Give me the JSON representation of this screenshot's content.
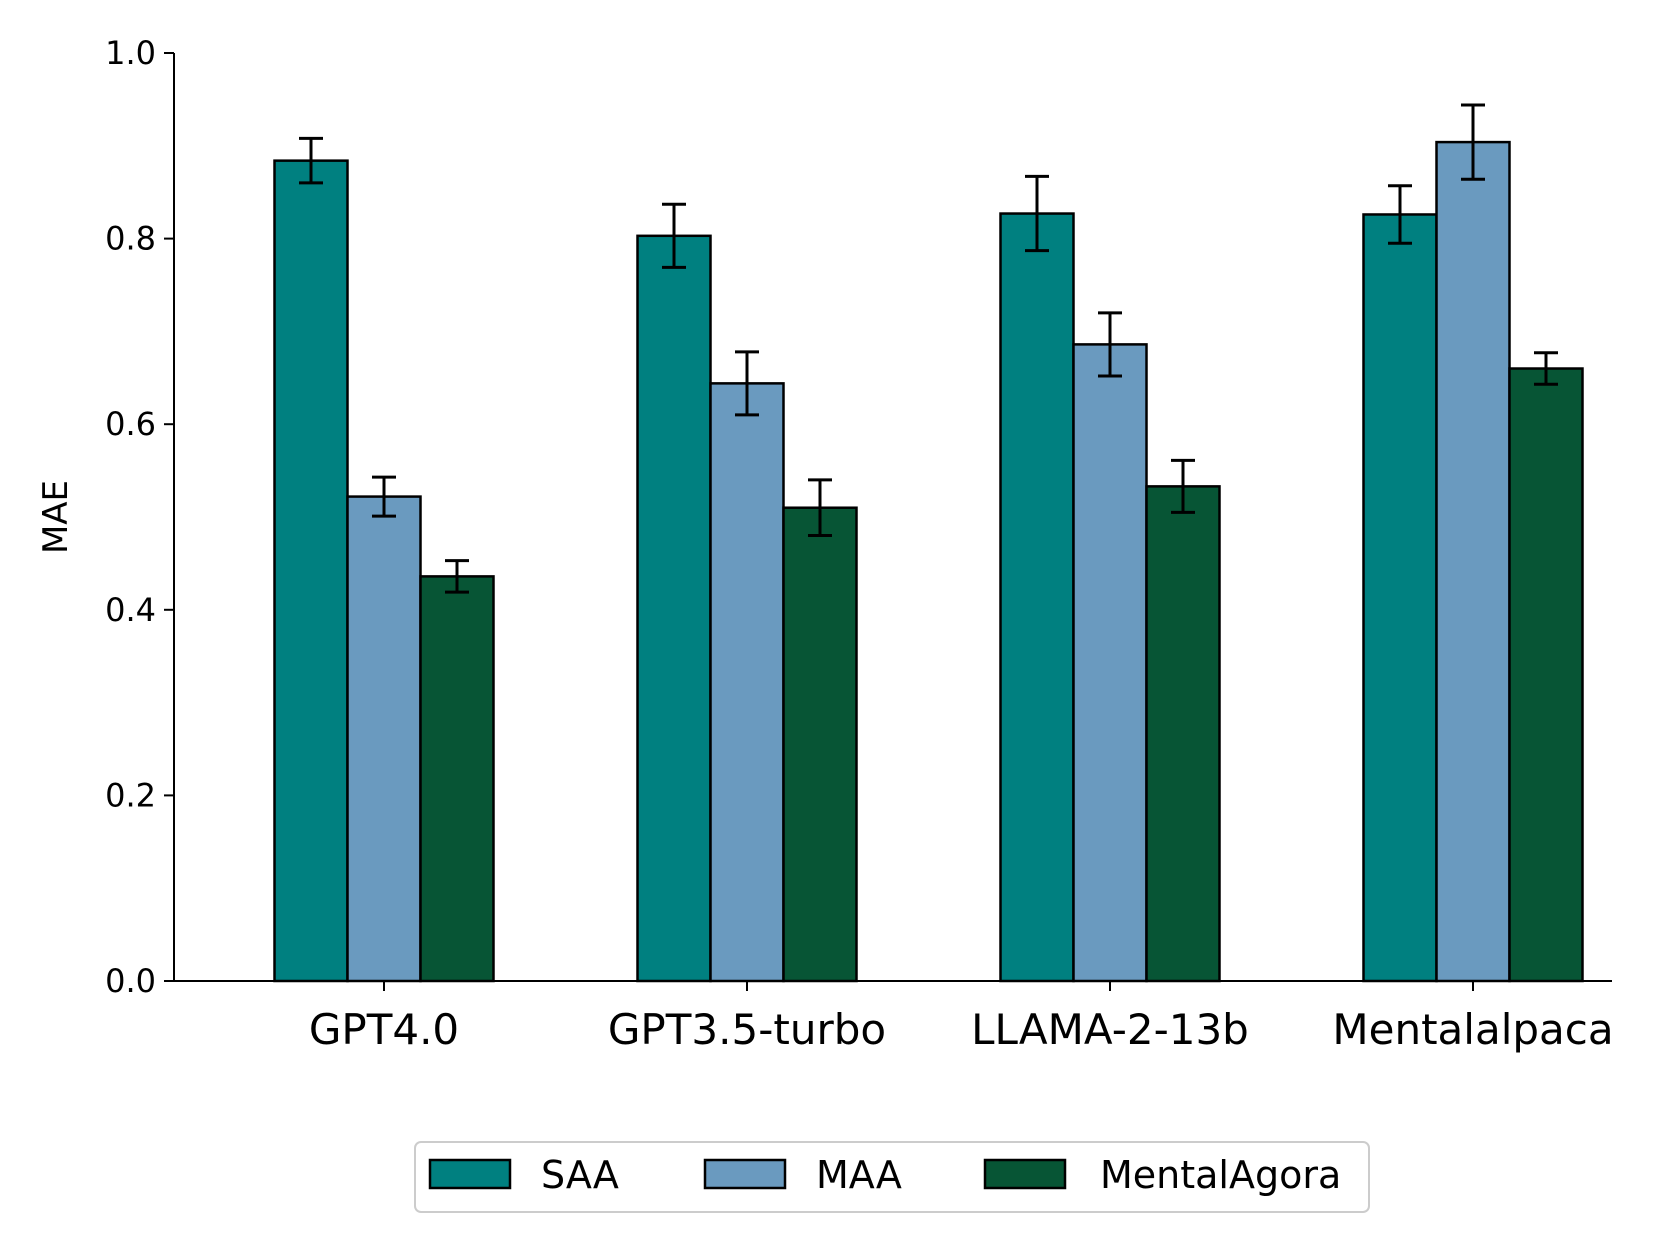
{
  "chart_data": {
    "type": "bar",
    "title": "",
    "xlabel": "",
    "ylabel": "MAE",
    "ylim": [
      0,
      1.0
    ],
    "yticks": [
      "0.0",
      "0.2",
      "0.4",
      "0.6",
      "0.8",
      "1.0"
    ],
    "categories": [
      "GPT4.0",
      "GPT3.5-turbo",
      "LLAMA-2-13b",
      "Mentalalpaca"
    ],
    "series": [
      {
        "name": "SAA",
        "color": "#008080",
        "values": [
          0.884,
          0.803,
          0.827,
          0.826
        ],
        "errors": [
          0.024,
          0.034,
          0.04,
          0.031
        ]
      },
      {
        "name": "MAA",
        "color": "#6a9abf",
        "values": [
          0.522,
          0.644,
          0.686,
          0.904
        ],
        "errors": [
          0.021,
          0.034,
          0.034,
          0.04
        ]
      },
      {
        "name": "MentalAgora",
        "color": "#075535",
        "values": [
          0.436,
          0.51,
          0.533,
          0.66
        ],
        "errors": [
          0.017,
          0.03,
          0.028,
          0.017
        ]
      }
    ],
    "grid": false,
    "legend": {
      "position": "bottom-center",
      "columns": 3
    }
  }
}
